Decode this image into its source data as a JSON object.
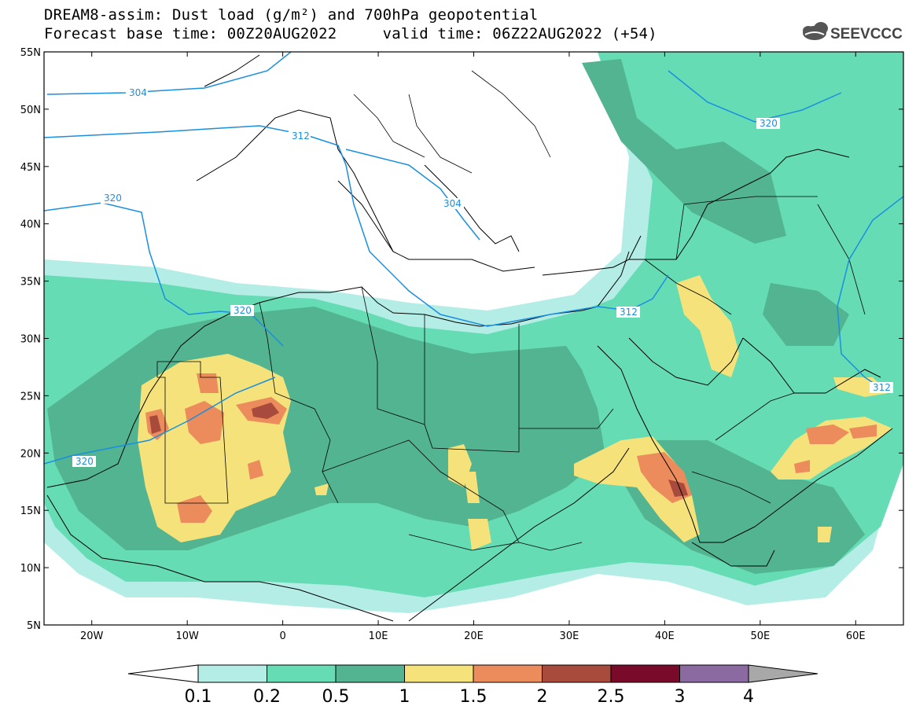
{
  "header": {
    "title_line1": "DREAM8-assim: Dust load (g/m²) and 700hPa geopotential",
    "title_line2": "Forecast base time: 00Z20AUG2022     valid time: 06Z22AUG2022 (+54)",
    "logo_text": "SEEVCCC"
  },
  "map": {
    "lon_range": [
      -25,
      65
    ],
    "lat_range": [
      5,
      55
    ],
    "lat_ticks": [
      "55N",
      "50N",
      "45N",
      "40N",
      "35N",
      "30N",
      "25N",
      "20N",
      "15N",
      "10N",
      "5N"
    ],
    "lon_ticks": [
      "20W",
      "10W",
      "0",
      "10E",
      "20E",
      "30E",
      "40E",
      "50E",
      "60E"
    ],
    "geopotential_labels": [
      "304",
      "312",
      "320",
      "304",
      "320",
      "320",
      "312",
      "320",
      "312"
    ]
  },
  "colorbar": {
    "labels": [
      "0.1",
      "0.2",
      "0.5",
      "1",
      "1.5",
      "2",
      "2.5",
      "3",
      "4"
    ],
    "colors": [
      "#b3ede6",
      "#66dcb4",
      "#52b490",
      "#f5e27a",
      "#ec8c5c",
      "#a84a3c",
      "#7a0a2a",
      "#8a6aa0"
    ],
    "under_color": "#ffffff",
    "over_color": "#a8a8a8"
  },
  "colors": {
    "contour_line": "#1a8fe0",
    "coastline": "#000000"
  }
}
